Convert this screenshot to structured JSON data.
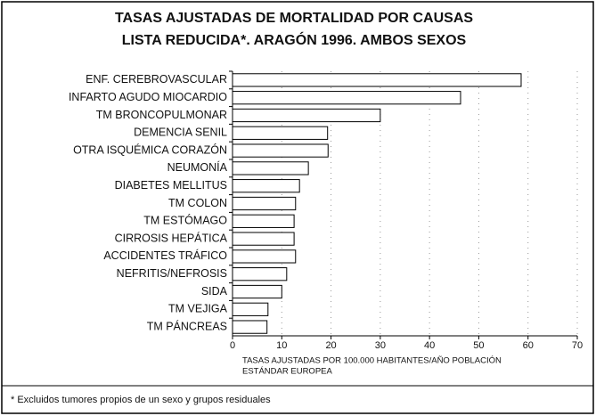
{
  "chart_data": {
    "type": "hbar",
    "title": [
      "TASAS AJUSTADAS DE MORTALIDAD POR CAUSAS",
      "LISTA REDUCIDA*. ARAGÓN 1996. AMBOS SEXOS"
    ],
    "categories": [
      "ENF. CEREBROVASCULAR",
      "INFARTO AGUDO MIOCARDIO",
      "TM BRONCOPULMONAR",
      "DEMENCIA SENIL",
      "OTRA ISQUÉMICA CORAZÓN",
      "NEUMONÍA",
      "DIABETES MELLITUS",
      "TM COLON",
      "TM ESTÓMAGO",
      "CIRROSIS HEPÁTICA",
      "ACCIDENTES TRÁFICO",
      "NEFRITIS/NEFROSIS",
      "SIDA",
      "TM VEJIGA",
      "TM PÁNCREAS"
    ],
    "values": [
      58.6,
      46.3,
      30,
      19.3,
      19.4,
      15.4,
      13.6,
      12.8,
      12.5,
      12.5,
      12.8,
      11,
      10,
      7.2,
      7
    ],
    "color": "#ffffff",
    "xlim": [
      0,
      70
    ],
    "xticks": [
      0,
      10,
      20,
      30,
      40,
      50,
      60,
      70
    ],
    "grid": true,
    "x_label": [
      "TASAS AJUSTADAS POR 100.000 HABITANTES/AÑO POBLACIÓN",
      "ESTÁNDAR EUROPEA"
    ],
    "footnote": "* Excluidos tumores propios de un sexo y grupos residuales"
  }
}
